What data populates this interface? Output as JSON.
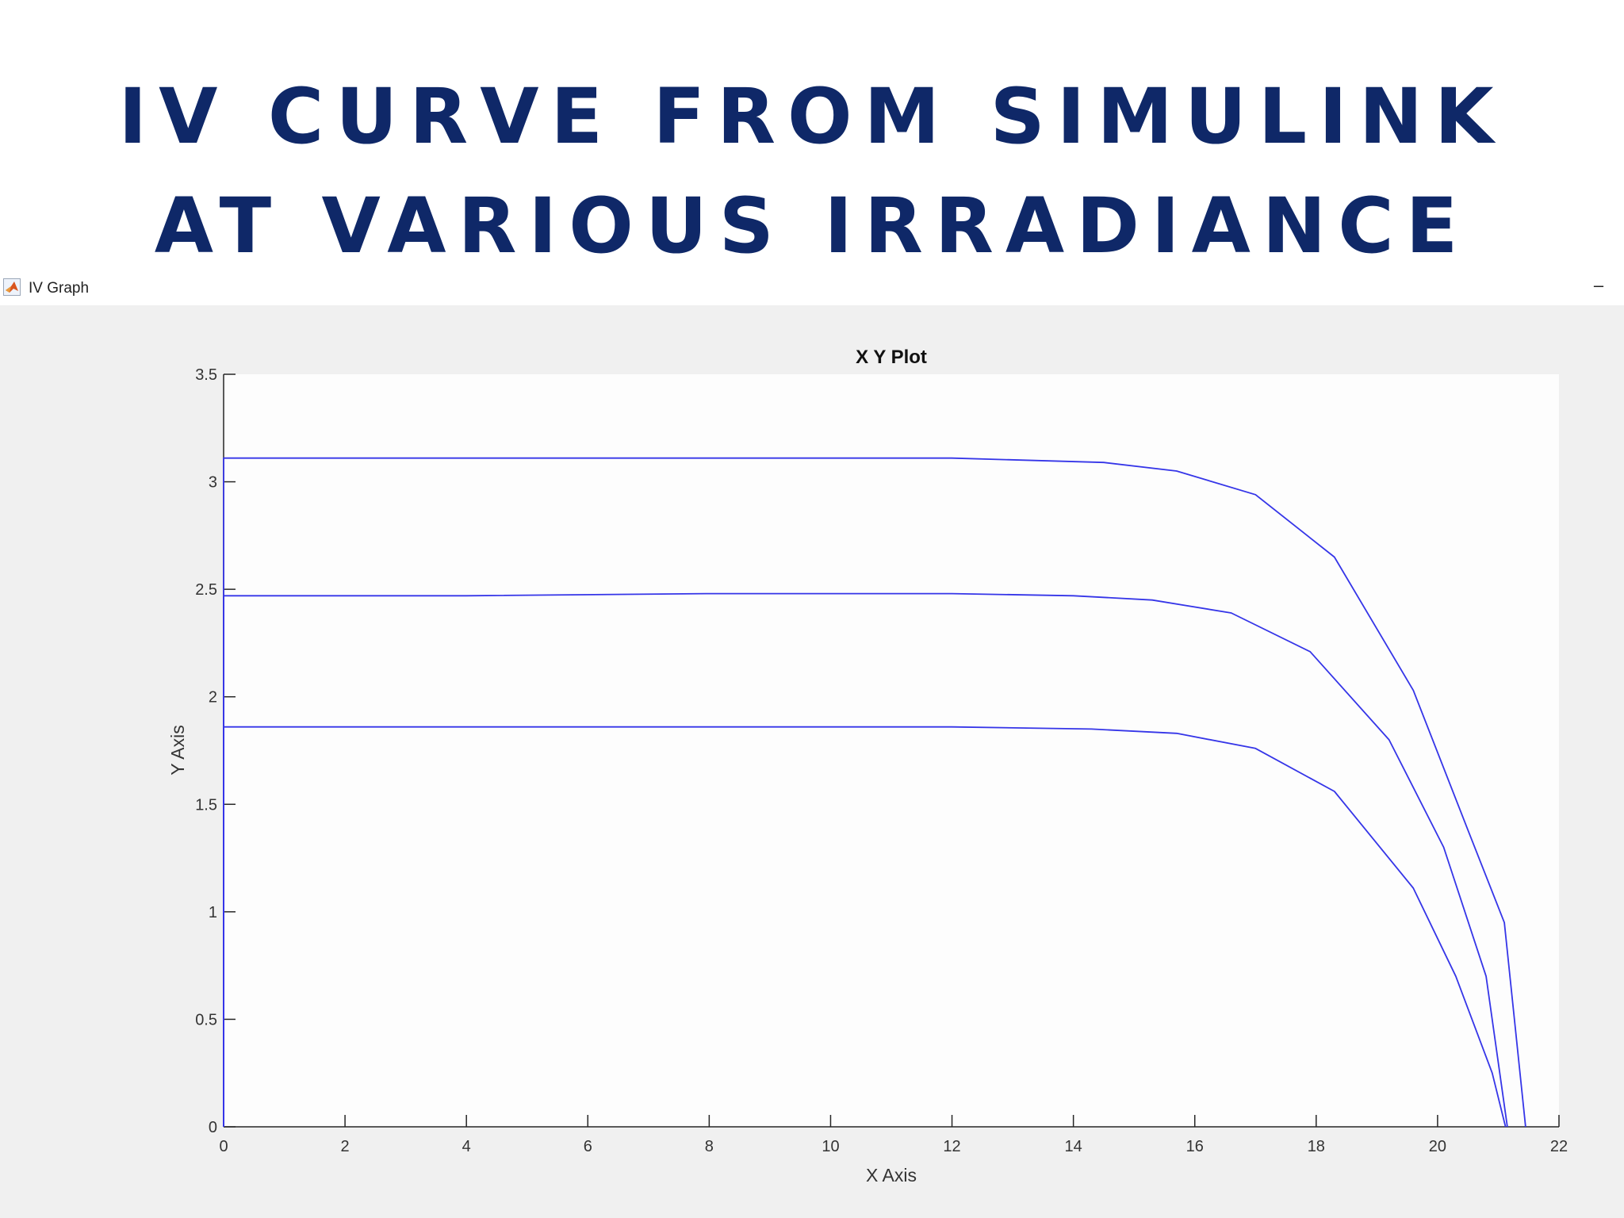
{
  "slide": {
    "title_line1": "IV CURVE FROM SIMULINK",
    "title_line2": "AT VARIOUS IRRADIANCE"
  },
  "window": {
    "title": "IV Graph",
    "minimize_label": "–",
    "icon": "matlab-icon"
  },
  "colors": {
    "title": "#0f2868",
    "line": "#3535e8",
    "figure_bg": "#f0f0f0",
    "plot_bg": "#fdfdfd"
  },
  "chart_data": {
    "type": "line",
    "title": "X Y Plot",
    "xlabel": "X Axis",
    "ylabel": "Y Axis",
    "xlim": [
      0,
      22
    ],
    "ylim": [
      0,
      3.5
    ],
    "xticks": [
      0,
      2,
      4,
      6,
      8,
      10,
      12,
      14,
      16,
      18,
      20,
      22
    ],
    "yticks": [
      0,
      0.5,
      1,
      1.5,
      2,
      2.5,
      3,
      3.5
    ],
    "grid": false,
    "legend": "none",
    "series": [
      {
        "x": [
          0,
          0,
          4,
          8,
          12,
          14.5,
          15.7,
          17,
          18.3,
          19.6,
          20.5,
          21.1,
          21.45
        ],
        "y": [
          0,
          3.11,
          3.11,
          3.11,
          3.11,
          3.09,
          3.05,
          2.94,
          2.65,
          2.03,
          1.38,
          0.95,
          0
        ]
      },
      {
        "x": [
          0,
          0,
          4,
          8,
          12,
          14.0,
          15.3,
          16.6,
          17.9,
          19.2,
          20.1,
          20.8,
          21.15
        ],
        "y": [
          0,
          2.47,
          2.47,
          2.48,
          2.48,
          2.47,
          2.45,
          2.39,
          2.21,
          1.8,
          1.3,
          0.7,
          0
        ]
      },
      {
        "x": [
          0,
          0,
          4,
          8,
          12,
          14.3,
          15.7,
          17.0,
          18.3,
          19.6,
          20.3,
          20.9,
          21.12
        ],
        "y": [
          0,
          1.86,
          1.86,
          1.86,
          1.86,
          1.85,
          1.83,
          1.76,
          1.56,
          1.11,
          0.7,
          0.25,
          0
        ]
      }
    ]
  }
}
